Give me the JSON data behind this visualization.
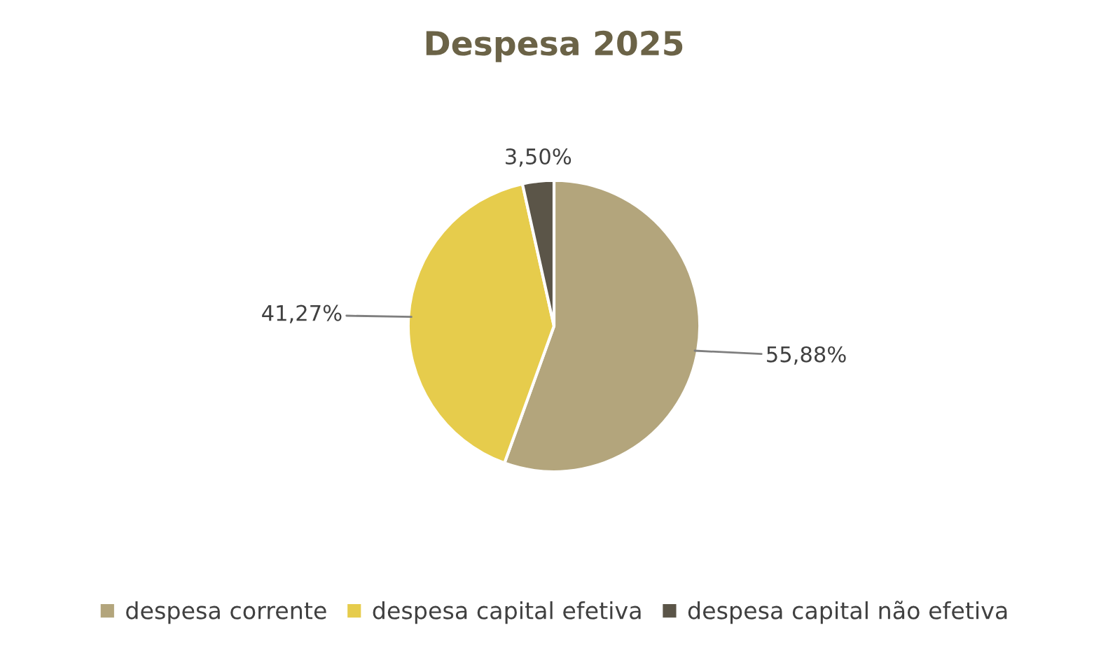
{
  "chart_data": {
    "type": "pie",
    "title": "Despesa 2025",
    "categories": [
      "despesa corrente",
      "despesa capital efetiva",
      "despesa capital não efetiva"
    ],
    "values": [
      55.88,
      41.27,
      3.5
    ],
    "value_labels": [
      "55,88%",
      "41,27%",
      "3,50%"
    ],
    "colors": [
      "#b3a57c",
      "#e6cc4c",
      "#5b5548"
    ],
    "legend": "bottom"
  }
}
